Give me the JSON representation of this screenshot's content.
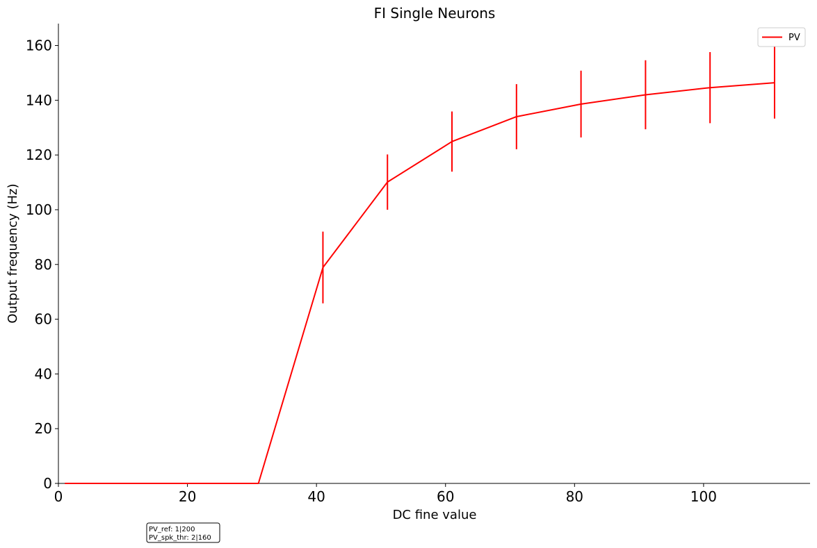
{
  "chart_data": {
    "type": "line",
    "title": "FI Single Neurons",
    "xlabel": "DC fine value",
    "ylabel": "Output frequency (Hz)",
    "xlim": [
      0,
      116.5
    ],
    "ylim": [
      0,
      168
    ],
    "xticks": [
      0,
      20,
      40,
      60,
      80,
      100
    ],
    "yticks": [
      0,
      20,
      40,
      60,
      80,
      100,
      120,
      140,
      160
    ],
    "grid": false,
    "legend_position": "top-right",
    "series": [
      {
        "name": "PV",
        "color": "#ff0000",
        "x": [
          1,
          11,
          21,
          31,
          41,
          51,
          61,
          71,
          81,
          91,
          101,
          111
        ],
        "y": [
          0,
          0,
          0,
          0,
          78.9,
          110.1,
          124.9,
          134.0,
          138.6,
          142.0,
          144.6,
          146.4
        ],
        "yerr": [
          0,
          0,
          0,
          0,
          13.1,
          10.1,
          11.0,
          11.9,
          12.2,
          12.6,
          13.0,
          13.1
        ]
      }
    ]
  },
  "annotation": {
    "lines": [
      "PV_ref: 1|200",
      "PV_spk_thr: 2|160"
    ]
  }
}
